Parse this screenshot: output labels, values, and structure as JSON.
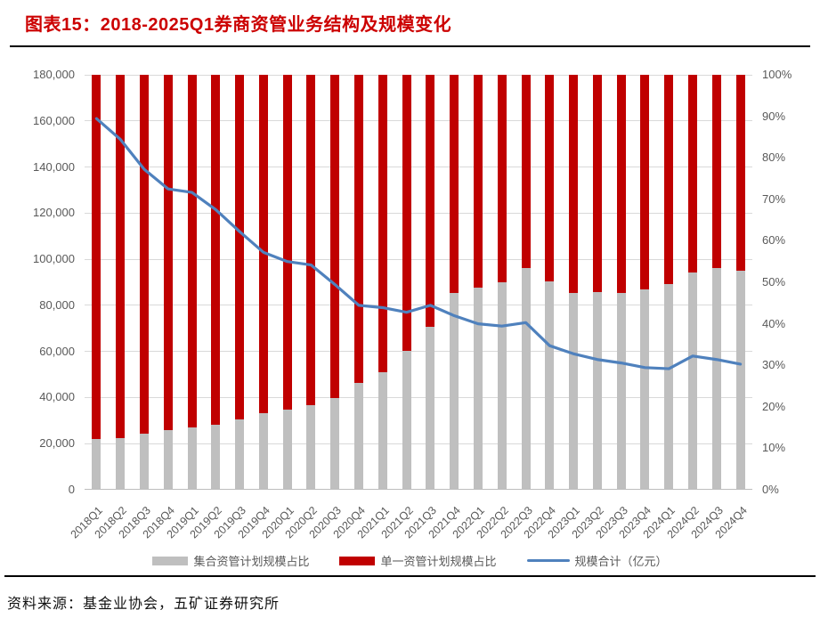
{
  "header": {
    "title": "图表15：2018-2025Q1券商资管业务结构及规模变化"
  },
  "footer": {
    "source": "资料来源：基金业协会，五矿证券研究所"
  },
  "colors": {
    "title_red": "#cc0000",
    "bar_gray": "#bfbfbf",
    "bar_red": "#c00000",
    "line_blue": "#4f81bd",
    "gridline": "#d9d9d9",
    "axis_text": "#595959"
  },
  "chart_data": {
    "type": "bar",
    "subtype": "stacked-100-bar-with-line",
    "title": "2018-2025Q1券商资管业务结构及规模变化",
    "categories": [
      "2018Q1",
      "2018Q2",
      "2018Q3",
      "2018Q4",
      "2019Q1",
      "2019Q2",
      "2019Q3",
      "2019Q4",
      "2020Q1",
      "2020Q2",
      "2020Q3",
      "2020Q4",
      "2021Q1",
      "2021Q2",
      "2021Q3",
      "2021Q4",
      "2022Q1",
      "2022Q2",
      "2022Q3",
      "2022Q4",
      "2023Q1",
      "2023Q2",
      "2023Q3",
      "2023Q4",
      "2024Q1",
      "2024Q2",
      "2024Q3",
      "2024Q4"
    ],
    "series": [
      {
        "name": "集合资管计划规模占比",
        "type": "bar",
        "axis": "right",
        "unit": "%",
        "values": [
          12.2,
          12.4,
          13.5,
          14.4,
          15.1,
          15.7,
          16.9,
          18.5,
          19.4,
          20.3,
          22.0,
          25.7,
          28.4,
          33.4,
          39.3,
          47.4,
          48.8,
          50.1,
          53.5,
          50.2,
          47.4,
          47.6,
          47.4,
          48.3,
          49.6,
          52.4,
          53.5,
          52.8
        ]
      },
      {
        "name": "单一资管计划规模占比",
        "type": "bar",
        "axis": "right",
        "unit": "%",
        "values": [
          87.8,
          87.6,
          86.5,
          85.6,
          84.9,
          84.3,
          83.1,
          81.5,
          80.6,
          79.7,
          78.0,
          74.3,
          71.6,
          66.6,
          60.7,
          52.6,
          51.2,
          49.9,
          46.5,
          49.8,
          52.6,
          52.4,
          52.6,
          51.7,
          50.4,
          47.6,
          46.5,
          47.2
        ]
      },
      {
        "name": "规模合计（亿元）",
        "type": "line",
        "axis": "left",
        "unit": "亿元",
        "values": [
          161000,
          152000,
          139000,
          130500,
          129000,
          121500,
          112000,
          103000,
          99000,
          97500,
          89000,
          80000,
          79000,
          77000,
          80000,
          75500,
          72000,
          71000,
          72500,
          62500,
          59000,
          56500,
          55000,
          53000,
          52500,
          58000,
          56500,
          54500
        ]
      }
    ],
    "left_axis": {
      "min": 0,
      "max": 180000,
      "step": 20000,
      "ticks": [
        "0",
        "20,000",
        "40,000",
        "60,000",
        "80,000",
        "100,000",
        "120,000",
        "140,000",
        "160,000",
        "180,000"
      ]
    },
    "right_axis": {
      "min": 0,
      "max": 100,
      "step": 10,
      "ticks": [
        "0%",
        "10%",
        "20%",
        "30%",
        "40%",
        "50%",
        "60%",
        "70%",
        "80%",
        "90%",
        "100%"
      ]
    },
    "legend": [
      {
        "label": "集合资管计划规模占比",
        "swatch": "bar",
        "color": "bar_gray"
      },
      {
        "label": "单一资管计划规模占比",
        "swatch": "bar",
        "color": "bar_red"
      },
      {
        "label": "规模合计（亿元）",
        "swatch": "line",
        "color": "line_blue"
      }
    ],
    "grid": "horizontal",
    "legend_position": "bottom"
  }
}
